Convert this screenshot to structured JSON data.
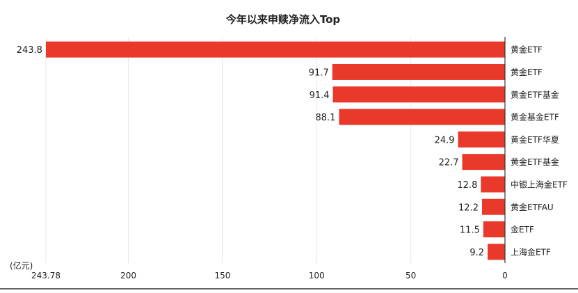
{
  "chart_data": {
    "type": "bar",
    "orientation": "horizontal",
    "title": "今年以来申赎净流入Top",
    "unit_label": "(亿元)",
    "categories": [
      "黄金ETF",
      "黄金ETF",
      "黄金ETF基金",
      "黄金基金ETF",
      "黄金ETF华夏",
      "黄金ETF基金",
      "中银上海金ETF",
      "黄金ETFAU",
      "金ETF",
      "上海金ETF"
    ],
    "values": [
      243.8,
      91.7,
      91.4,
      88.1,
      24.9,
      22.7,
      12.8,
      12.2,
      11.5,
      9.2
    ],
    "data_labels": [
      "243.8",
      "91.7",
      "91.4",
      "88.1",
      "24.9",
      "22.7",
      "12.8",
      "12.2",
      "11.5",
      "9.2"
    ],
    "x_ticks": [
      243.78,
      200,
      150,
      100,
      50,
      0
    ],
    "x_tick_labels": [
      "243.78",
      "200",
      "150",
      "100",
      "50",
      "0"
    ],
    "xlim": [
      0,
      243.78
    ],
    "x_reversed": true,
    "grid": true,
    "bar_color": "#E8392A",
    "grid_color": "#E6E6E6",
    "axis_color": "#333333"
  }
}
